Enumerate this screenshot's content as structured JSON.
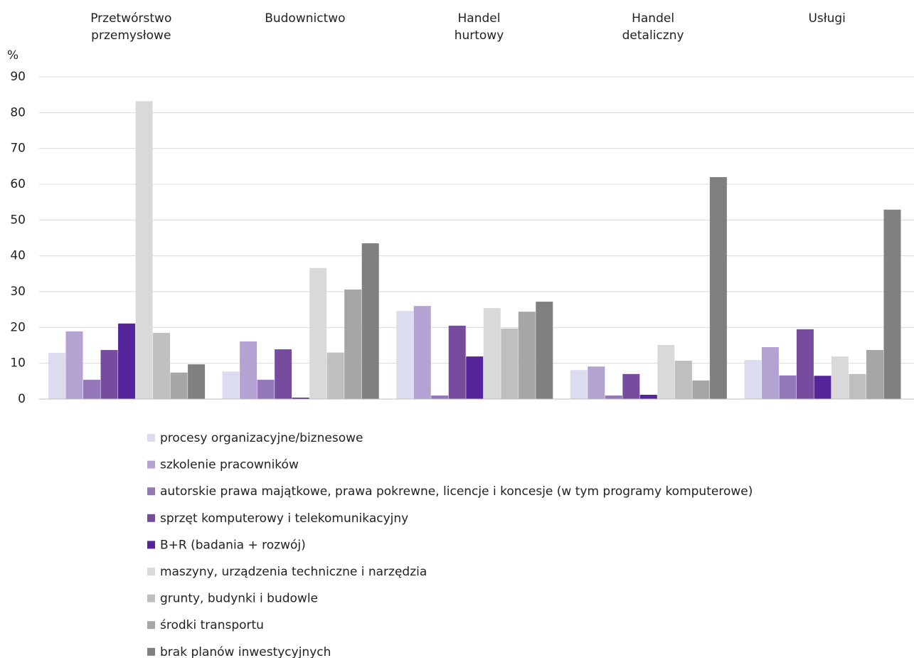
{
  "chart_data": {
    "type": "bar",
    "y_label": "%",
    "categories": [
      "Przetwórstwo\nprzemysłowe",
      "Budownictwo",
      "Handel\nhurtowy",
      "Handel\ndetaliczny",
      "Usługi"
    ],
    "series": [
      {
        "name": "procesy organizacyjne/biznesowe",
        "color": "#dcdcf0",
        "values": [
          12.9,
          7.7,
          24.6,
          8.1,
          10.9
        ]
      },
      {
        "name": "szkolenie pracowników",
        "color": "#b3a2d2",
        "values": [
          18.9,
          16.1,
          26,
          9.1,
          14.5
        ]
      },
      {
        "name": "autorskie prawa majątkowe, prawa pokrewne, licencje i koncesje (w tym programy komputerowe)",
        "color": "#9379ba",
        "values": [
          5.4,
          5.4,
          1,
          1,
          6.6
        ]
      },
      {
        "name": "sprzęt komputerowy i telekomunikacyjny",
        "color": "#774c9f",
        "values": [
          13.7,
          13.9,
          20.5,
          7,
          19.5
        ]
      },
      {
        "name": "B+R (badania + rozwój)",
        "color": "#57259b",
        "values": [
          21.1,
          0.4,
          11.9,
          1.2,
          6.5
        ]
      },
      {
        "name": "maszyny, urządzenia techniczne i narzędzia",
        "color": "#d9d9d9",
        "values": [
          83.2,
          36.6,
          25.4,
          15.1,
          11.9
        ]
      },
      {
        "name": "grunty, budynki i budowle",
        "color": "#bfbfbf",
        "values": [
          18.5,
          13,
          19.7,
          10.7,
          7
        ]
      },
      {
        "name": "środki transportu",
        "color": "#a6a6a6",
        "values": [
          7.4,
          30.6,
          24.4,
          5.2,
          13.7
        ]
      },
      {
        "name": "brak planów inwestycyjnych",
        "color": "#808080",
        "values": [
          9.7,
          43.5,
          27.2,
          62,
          52.9
        ]
      }
    ],
    "ylim": [
      0,
      90
    ],
    "yticks": [
      0,
      10,
      20,
      30,
      40,
      50,
      60,
      70,
      80,
      90
    ],
    "grid": true,
    "legend": "bottom"
  }
}
